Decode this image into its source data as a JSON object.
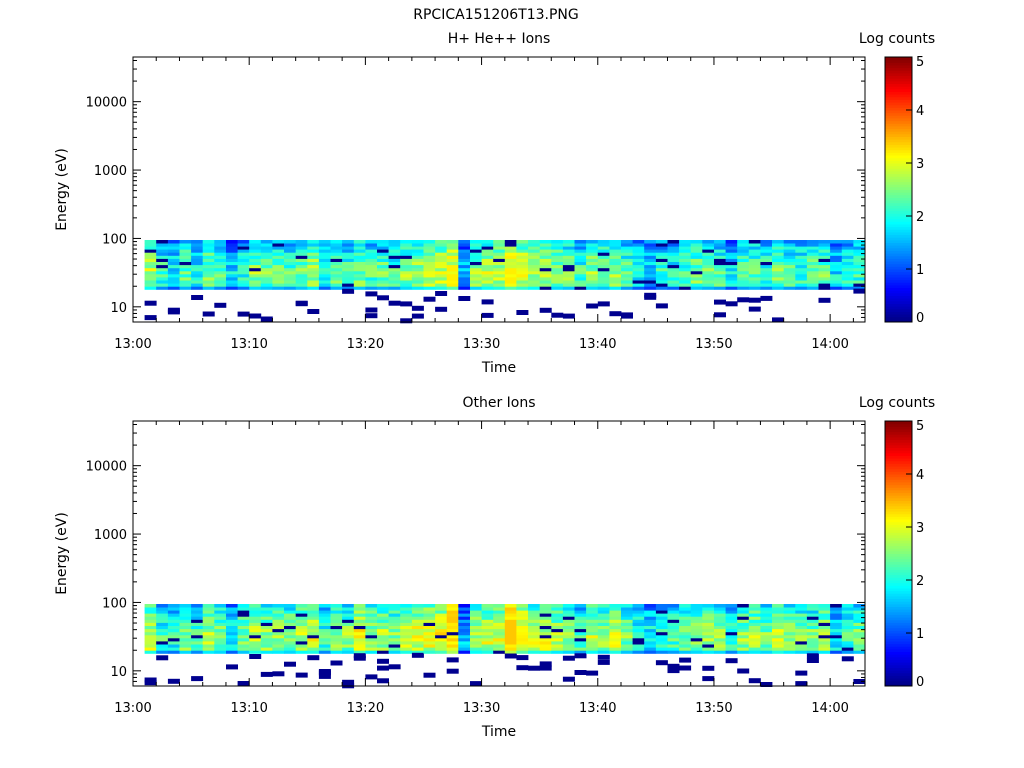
{
  "figure": {
    "title": "RPCICA151206T13.PNG"
  },
  "colorbar": {
    "label": "Log counts",
    "ticks": [
      "0",
      "1",
      "2",
      "3",
      "4",
      "5"
    ],
    "range": [
      0,
      5
    ],
    "colormap": "jet"
  },
  "chart_data": [
    {
      "type": "heatmap",
      "title": "H+ He++ Ions",
      "xlabel": "Time",
      "ylabel": "Energy (eV)",
      "x_ticks": [
        "13:00",
        "13:10",
        "13:20",
        "13:30",
        "13:40",
        "13:50",
        "14:00"
      ],
      "y_ticks": [
        "10",
        "100",
        "1000",
        "10000"
      ],
      "y_scale": "log",
      "ylim": [
        6,
        45000
      ],
      "xlim": [
        "13:00",
        "14:03"
      ],
      "energy_band_eV": [
        18,
        95
      ],
      "time_bins_min": [
        1,
        2,
        3,
        4,
        5,
        6,
        7,
        8,
        9,
        10,
        11,
        12,
        13,
        14,
        15,
        16,
        17,
        18,
        19,
        20,
        21,
        22,
        23,
        24,
        25,
        26,
        27,
        28,
        29,
        30,
        31,
        32,
        33,
        34,
        35,
        36,
        37,
        38,
        39,
        40,
        41,
        42,
        43,
        44,
        45,
        46,
        47,
        48,
        49,
        50,
        51,
        52,
        53,
        54,
        55,
        56,
        57,
        58,
        59,
        60,
        61,
        62
      ],
      "mean_log_counts": [
        2.2,
        1.6,
        1.3,
        1.8,
        1.4,
        1.9,
        1.6,
        1.2,
        1.5,
        2.0,
        1.9,
        1.8,
        1.7,
        1.9,
        2.1,
        1.4,
        1.8,
        1.6,
        1.9,
        1.7,
        1.8,
        1.7,
        2.0,
        2.1,
        2.2,
        2.3,
        2.6,
        1.0,
        2.0,
        2.2,
        2.3,
        2.6,
        2.4,
        2.2,
        2.1,
        2.0,
        1.9,
        1.6,
        2.0,
        1.9,
        2.1,
        1.7,
        1.4,
        1.2,
        1.5,
        1.4,
        1.7,
        1.9,
        1.8,
        1.7,
        1.3,
        1.7,
        1.8,
        1.6,
        1.9,
        1.7,
        1.6,
        1.8,
        1.9,
        1.2,
        1.5,
        1.6
      ],
      "peak_log_counts": 3.2
    },
    {
      "type": "heatmap",
      "title": "Other Ions",
      "xlabel": "Time",
      "ylabel": "Energy (eV)",
      "x_ticks": [
        "13:00",
        "13:10",
        "13:20",
        "13:30",
        "13:40",
        "13:50",
        "14:00"
      ],
      "y_ticks": [
        "10",
        "100",
        "1000",
        "10000"
      ],
      "y_scale": "log",
      "ylim": [
        6,
        45000
      ],
      "xlim": [
        "13:00",
        "14:03"
      ],
      "energy_band_eV": [
        18,
        95
      ],
      "time_bins_min": [
        1,
        2,
        3,
        4,
        5,
        6,
        7,
        8,
        9,
        10,
        11,
        12,
        13,
        14,
        15,
        16,
        17,
        18,
        19,
        20,
        21,
        22,
        23,
        24,
        25,
        26,
        27,
        28,
        29,
        30,
        31,
        32,
        33,
        34,
        35,
        36,
        37,
        38,
        39,
        40,
        41,
        42,
        43,
        44,
        45,
        46,
        47,
        48,
        49,
        50,
        51,
        52,
        53,
        54,
        55,
        56,
        57,
        58,
        59,
        60,
        61,
        62
      ],
      "mean_log_counts": [
        2.3,
        1.6,
        1.5,
        2.0,
        1.6,
        2.1,
        2.0,
        1.4,
        1.9,
        2.3,
        2.1,
        2.1,
        2.0,
        2.2,
        2.3,
        1.6,
        2.1,
        2.0,
        2.5,
        2.1,
        2.2,
        2.0,
        2.3,
        2.4,
        2.4,
        2.5,
        3.0,
        1.0,
        2.2,
        2.3,
        2.4,
        3.1,
        2.6,
        2.3,
        2.3,
        2.1,
        2.0,
        1.7,
        2.2,
        2.0,
        2.3,
        1.9,
        1.6,
        1.4,
        1.6,
        1.7,
        1.9,
        2.0,
        2.1,
        2.0,
        1.6,
        2.0,
        2.1,
        2.0,
        2.3,
        2.1,
        2.0,
        1.9,
        2.1,
        1.3,
        1.7,
        1.9
      ],
      "peak_log_counts": 3.4
    }
  ]
}
